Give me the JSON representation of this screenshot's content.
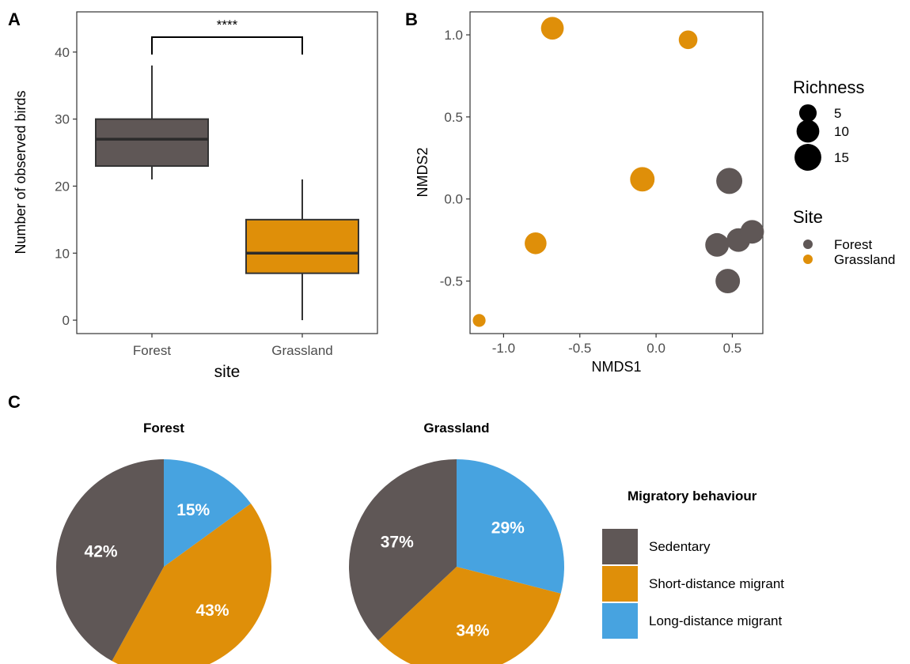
{
  "colors": {
    "forest": "#5f5756",
    "grassland": "#df8f09",
    "long_distance": "#47a3e0"
  },
  "chart_data": [
    {
      "panel": "A",
      "type": "box",
      "categories": [
        "Forest",
        "Grassland"
      ],
      "boxes": [
        {
          "category": "Forest",
          "min": 21,
          "q1": 23,
          "median": 27,
          "q3": 30,
          "max": 38
        },
        {
          "category": "Grassland",
          "min": 0,
          "q1": 7,
          "median": 10,
          "q3": 15,
          "max": 21
        }
      ],
      "xlabel": "site",
      "ylabel": "Number of observed birds",
      "ylim": [
        -2,
        46
      ],
      "yticks": [
        0,
        10,
        20,
        30,
        40
      ],
      "significance": "****",
      "grid": false
    },
    {
      "panel": "B",
      "type": "scatter",
      "xlabel": "NMDS1",
      "ylabel": "NMDS2",
      "xlim": [
        -1.22,
        0.7
      ],
      "ylim": [
        -0.82,
        1.14
      ],
      "xticks": [
        "-1.0",
        "-0.5",
        "0.0",
        "0.5"
      ],
      "yticks": [
        "-0.5",
        "0.0",
        "0.5",
        "1.0"
      ],
      "points": [
        {
          "x": -0.68,
          "y": 1.04,
          "site": "Grassland",
          "richness": 10
        },
        {
          "x": 0.21,
          "y": 0.97,
          "site": "Grassland",
          "richness": 6
        },
        {
          "x": -0.09,
          "y": 0.12,
          "site": "Grassland",
          "richness": 12
        },
        {
          "x": -0.79,
          "y": -0.27,
          "site": "Grassland",
          "richness": 9
        },
        {
          "x": -1.16,
          "y": -0.74,
          "site": "Grassland",
          "richness": 2
        },
        {
          "x": 0.48,
          "y": 0.11,
          "site": "Forest",
          "richness": 14
        },
        {
          "x": 0.4,
          "y": -0.28,
          "site": "Forest",
          "richness": 11
        },
        {
          "x": 0.54,
          "y": -0.25,
          "site": "Forest",
          "richness": 11
        },
        {
          "x": 0.63,
          "y": -0.2,
          "site": "Forest",
          "richness": 11
        },
        {
          "x": 0.47,
          "y": -0.5,
          "site": "Forest",
          "richness": 12
        }
      ],
      "legend_richness": {
        "title": "Richness",
        "values": [
          5,
          10,
          15
        ]
      },
      "legend_site": {
        "title": "Site",
        "entries": [
          "Forest",
          "Grassland"
        ]
      },
      "grid": false
    },
    {
      "panel": "C",
      "type": "pie",
      "title": "Forest",
      "slices": [
        {
          "category": "Long-distance migrant",
          "value": 15,
          "label": "15%"
        },
        {
          "category": "Short-distance migrant",
          "value": 43,
          "label": "43%"
        },
        {
          "category": "Sedentary",
          "value": 42,
          "label": "42%"
        }
      ]
    },
    {
      "panel": "C",
      "type": "pie",
      "title": "Grassland",
      "slices": [
        {
          "category": "Long-distance migrant",
          "value": 29,
          "label": "29%"
        },
        {
          "category": "Short-distance migrant",
          "value": 34,
          "label": "34%"
        },
        {
          "category": "Sedentary",
          "value": 37,
          "label": "37%"
        }
      ]
    }
  ],
  "panel_letters": {
    "a": "A",
    "b": "B",
    "c": "C"
  },
  "migratory_legend": {
    "title": "Migratory behaviour",
    "entries": [
      "Sedentary",
      "Short-distance migrant",
      "Long-distance migrant"
    ]
  }
}
